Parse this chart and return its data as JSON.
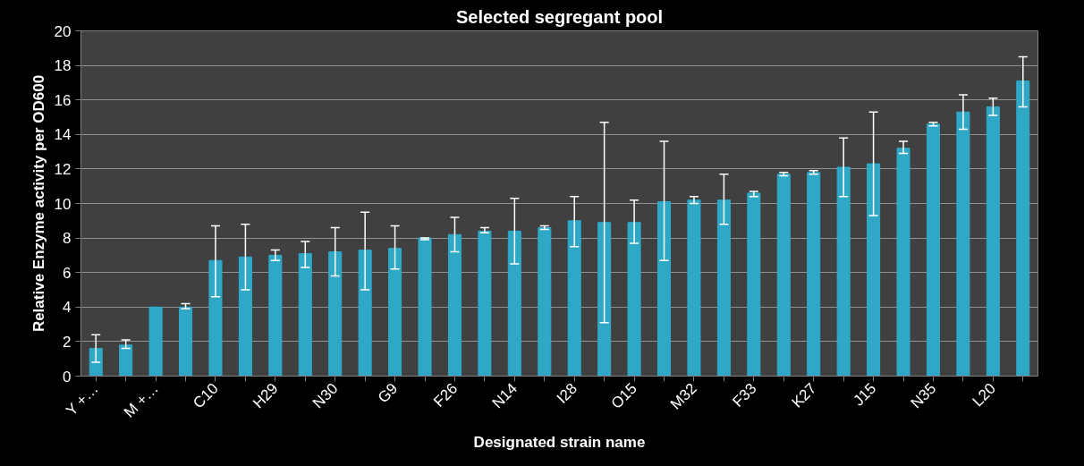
{
  "chart_data": {
    "type": "bar",
    "title": "Selected segregant pool",
    "xlabel": "Designated strain name",
    "ylabel": "Relative Enzyme activity per OD600",
    "categories": [
      "Y +…",
      null,
      "M +…",
      null,
      "C10",
      null,
      "H29",
      null,
      "N30",
      null,
      "G9",
      null,
      "F26",
      null,
      "N14",
      null,
      "I28",
      null,
      "O15",
      null,
      "M32",
      null,
      "F33",
      null,
      "K27",
      null,
      "J15",
      null,
      "N35",
      null,
      "L20",
      null
    ],
    "values": [
      1.6,
      1.8,
      4.0,
      4.0,
      6.7,
      6.9,
      7.0,
      7.1,
      7.2,
      7.3,
      7.4,
      8.0,
      8.2,
      8.4,
      8.4,
      8.6,
      9.0,
      8.9,
      8.9,
      10.1,
      10.2,
      10.2,
      10.6,
      11.7,
      11.8,
      12.1,
      12.3,
      13.2,
      14.6,
      15.3,
      15.6,
      17.1
    ],
    "errors": [
      [
        0.8,
        2.4
      ],
      [
        1.6,
        2.1
      ],
      null,
      [
        3.9,
        4.2
      ],
      [
        4.6,
        8.7
      ],
      [
        5.0,
        8.8
      ],
      [
        6.7,
        7.3
      ],
      [
        6.3,
        7.8
      ],
      [
        5.8,
        8.6
      ],
      [
        5.0,
        9.5
      ],
      [
        6.2,
        8.7
      ],
      [
        7.9,
        8.0
      ],
      [
        7.2,
        9.2
      ],
      [
        8.3,
        8.6
      ],
      [
        6.5,
        10.3
      ],
      [
        8.5,
        8.7
      ],
      [
        7.5,
        10.4
      ],
      [
        3.1,
        14.7
      ],
      [
        7.7,
        10.2
      ],
      [
        6.7,
        13.6
      ],
      [
        10.0,
        10.4
      ],
      [
        8.8,
        11.7
      ],
      [
        10.4,
        10.7
      ],
      [
        11.6,
        11.8
      ],
      [
        11.7,
        11.9
      ],
      [
        10.4,
        13.8
      ],
      [
        9.3,
        15.3
      ],
      [
        12.9,
        13.6
      ],
      [
        14.5,
        14.7
      ],
      [
        14.3,
        16.3
      ],
      [
        15.1,
        16.1
      ],
      [
        15.6,
        18.5
      ]
    ],
    "color": "#2fa8c8",
    "ylim": [
      0,
      20
    ],
    "yticks": [
      0,
      2,
      4,
      6,
      8,
      10,
      12,
      14,
      16,
      18,
      20
    ],
    "grid": "y"
  }
}
